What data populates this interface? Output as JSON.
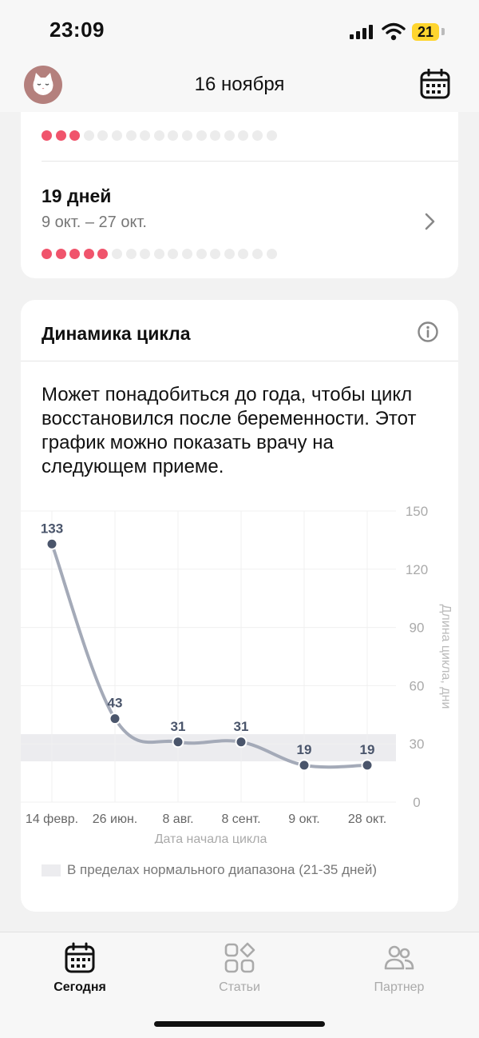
{
  "status_bar": {
    "time": "23:09",
    "battery": "21"
  },
  "header": {
    "date": "16 ноября"
  },
  "cycle_list": [
    {
      "days": "",
      "range": "",
      "dots_total": 17,
      "dots_filled": 3
    },
    {
      "days": "19 дней",
      "range": "9 окт. – 27 окт.",
      "dots_total": 17,
      "dots_filled": 5
    }
  ],
  "dynamics_card": {
    "title": "Динамика цикла",
    "description": "Может понадобиться до года, чтобы цикл восстановился после беременности. Этот график можно показать врачу на следующем приеме.",
    "legend": "В пределах нормального диапазона (21-35 дней)"
  },
  "chart_data": {
    "type": "line",
    "categories": [
      "14 февр.",
      "26 июн.",
      "8 авг.",
      "8 сент.",
      "9 окт.",
      "28 окт."
    ],
    "values": [
      133,
      43,
      31,
      31,
      19,
      19
    ],
    "xlabel": "Дата начала цикла",
    "ylabel": "Длина цикла, дни",
    "ylim": [
      0,
      150
    ],
    "yticks": [
      0,
      30,
      60,
      90,
      120,
      150
    ],
    "normal_range": [
      21,
      35
    ],
    "data_labels": true,
    "colors": {
      "line": "#a4aab8",
      "point": "#4a556b",
      "label": "#4a556b",
      "band": "#ececef",
      "axis_text": "#aaaaaa"
    }
  },
  "nav": {
    "items": [
      {
        "label": "Сегодня",
        "icon": "calendar-icon",
        "active": true
      },
      {
        "label": "Статьи",
        "icon": "articles-icon",
        "active": false
      },
      {
        "label": "Партнер",
        "icon": "partner-icon",
        "active": false
      }
    ]
  },
  "colors": {
    "accent": "#f0546c",
    "dot_empty": "#ececec",
    "background": "#f2f2f2"
  }
}
